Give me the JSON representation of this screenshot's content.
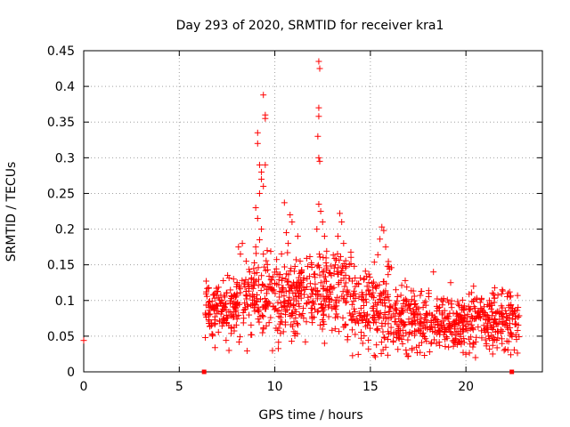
{
  "chart_data": {
    "type": "scatter",
    "title": "Day 293 of 2020, SRMTID for receiver kra1",
    "xlabel": "GPS time / hours",
    "ylabel": "SRMTID / TECUs",
    "xlim": [
      0,
      24
    ],
    "ylim": [
      0,
      0.45
    ],
    "xticks": [
      0,
      5,
      10,
      15,
      20
    ],
    "yticks": [
      0,
      0.05,
      0.1,
      0.15,
      0.2,
      0.25,
      0.3,
      0.35,
      0.4,
      0.45
    ],
    "xtick_labels": [
      "0",
      "5",
      "10",
      "15",
      "20"
    ],
    "ytick_labels": [
      "0",
      "0.05",
      "0.1",
      "0.15",
      "0.2",
      "0.25",
      "0.3",
      "0.35",
      "0.4",
      "0.45"
    ],
    "grid": true,
    "marker": "+",
    "color": "#ff0000",
    "series": [
      {
        "name": "SRMTID",
        "points": [
          [
            0.0,
            0.044
          ],
          [
            6.3,
            0.0
          ],
          [
            22.4,
            0.0
          ],
          [
            9.1,
            0.335
          ],
          [
            9.1,
            0.32
          ],
          [
            9.2,
            0.29
          ],
          [
            9.3,
            0.28
          ],
          [
            9.3,
            0.27
          ],
          [
            9.4,
            0.26
          ],
          [
            9.2,
            0.25
          ],
          [
            9.5,
            0.29
          ],
          [
            9.5,
            0.36
          ],
          [
            9.5,
            0.355
          ],
          [
            9.4,
            0.388
          ],
          [
            9.0,
            0.23
          ],
          [
            9.1,
            0.215
          ],
          [
            9.3,
            0.2
          ],
          [
            9.2,
            0.185
          ],
          [
            9.0,
            0.175
          ],
          [
            9.4,
            0.165
          ],
          [
            9.6,
            0.17
          ],
          [
            12.3,
            0.435
          ],
          [
            12.35,
            0.425
          ],
          [
            12.3,
            0.37
          ],
          [
            12.3,
            0.358
          ],
          [
            12.25,
            0.33
          ],
          [
            12.3,
            0.3
          ],
          [
            12.35,
            0.295
          ],
          [
            12.3,
            0.235
          ],
          [
            12.4,
            0.225
          ],
          [
            12.5,
            0.21
          ],
          [
            12.2,
            0.2
          ],
          [
            12.6,
            0.19
          ],
          [
            10.5,
            0.237
          ],
          [
            10.8,
            0.22
          ],
          [
            10.9,
            0.21
          ],
          [
            10.6,
            0.195
          ],
          [
            11.2,
            0.19
          ],
          [
            10.7,
            0.18
          ],
          [
            13.4,
            0.222
          ],
          [
            13.5,
            0.21
          ],
          [
            13.3,
            0.19
          ],
          [
            13.6,
            0.18
          ],
          [
            15.6,
            0.203
          ],
          [
            15.7,
            0.198
          ],
          [
            15.5,
            0.186
          ],
          [
            15.8,
            0.175
          ],
          [
            15.9,
            0.148
          ],
          [
            16.1,
            0.146
          ],
          [
            16.0,
            0.144
          ],
          [
            8.3,
            0.18
          ],
          [
            8.1,
            0.175
          ],
          [
            8.2,
            0.165
          ],
          [
            8.5,
            0.155
          ],
          [
            18.3,
            0.14
          ],
          [
            19.2,
            0.125
          ],
          [
            20.4,
            0.12
          ],
          [
            21.9,
            0.115
          ],
          [
            22.7,
            0.107
          ],
          [
            7.6,
            0.03
          ],
          [
            15.2,
            0.023
          ],
          [
            16.9,
            0.025
          ],
          [
            18.1,
            0.028
          ],
          [
            20.5,
            0.02
          ],
          [
            21.4,
            0.025
          ],
          [
            22.0,
            0.03
          ],
          [
            14.6,
            0.04
          ],
          [
            13.8,
            0.045
          ],
          [
            11.6,
            0.042
          ],
          [
            12.6,
            0.04
          ]
        ]
      }
    ],
    "generated_cluster": {
      "x_range": [
        6.35,
        22.8
      ],
      "seed": 293
    }
  }
}
